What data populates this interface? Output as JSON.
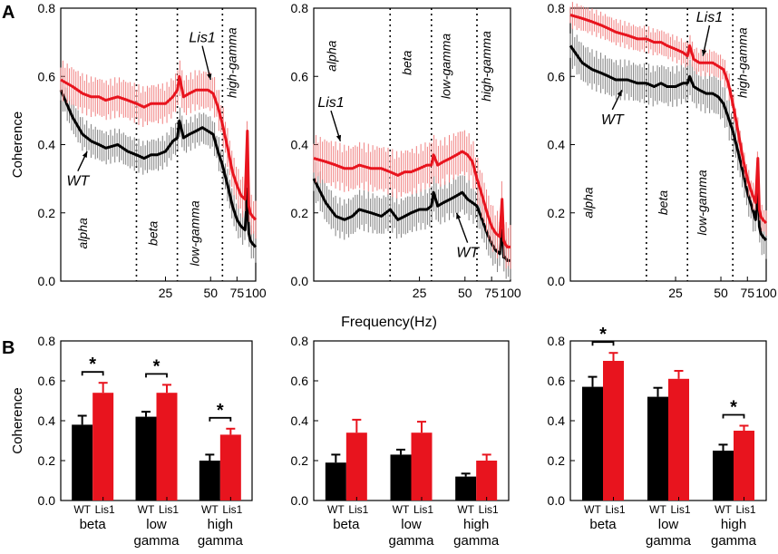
{
  "panel_labels": {
    "A": "A",
    "B": "B"
  },
  "shared_xlabel": "Frequency(Hz)",
  "colors": {
    "wt": "#000000",
    "lis1": "#e8141e",
    "wt_band": "#808080",
    "lis1_band": "#f08080"
  },
  "chart_data": [
    {
      "type": "line",
      "ylabel": "Coherence",
      "ylim": [
        0.0,
        0.8
      ],
      "yticks": [
        "0.0",
        "0.2",
        "0.4",
        "0.6",
        "0.8"
      ],
      "xscale": "log",
      "xlim": [
        5,
        100
      ],
      "xticks": [
        "25",
        "50",
        "75",
        "100"
      ],
      "xtick_values": [
        25,
        50,
        75,
        100
      ],
      "band_boundaries_hz": [
        16,
        30,
        60
      ],
      "band_labels": [
        {
          "text": "alpha",
          "f": 7.5,
          "y": 0.14
        },
        {
          "text": "beta",
          "f": 22,
          "y": 0.14
        },
        {
          "text": "low-gamma",
          "f": 42,
          "y": 0.14
        },
        {
          "text": "high-gamma",
          "f": 74,
          "y": 0.64
        }
      ],
      "series": [
        {
          "name": "WT",
          "x": [
            5,
            6,
            7,
            8,
            9,
            10,
            12,
            14,
            16,
            18,
            20,
            22,
            25,
            28,
            30,
            31,
            33,
            36,
            40,
            44,
            48,
            52,
            56,
            60,
            65,
            70,
            75,
            80,
            85,
            88,
            90,
            92,
            95,
            100
          ],
          "values": [
            0.56,
            0.48,
            0.43,
            0.41,
            0.4,
            0.39,
            0.4,
            0.38,
            0.37,
            0.36,
            0.37,
            0.37,
            0.38,
            0.41,
            0.42,
            0.47,
            0.42,
            0.43,
            0.44,
            0.45,
            0.44,
            0.43,
            0.38,
            0.34,
            0.28,
            0.22,
            0.18,
            0.16,
            0.15,
            0.27,
            0.14,
            0.12,
            0.11,
            0.1
          ],
          "err": 0.05
        },
        {
          "name": "Lis1",
          "x": [
            5,
            6,
            7,
            8,
            9,
            10,
            12,
            14,
            16,
            18,
            20,
            22,
            25,
            28,
            30,
            31,
            33,
            36,
            40,
            44,
            48,
            52,
            56,
            60,
            65,
            70,
            75,
            80,
            85,
            88,
            90,
            92,
            95,
            100
          ],
          "values": [
            0.59,
            0.57,
            0.55,
            0.54,
            0.54,
            0.53,
            0.54,
            0.53,
            0.52,
            0.51,
            0.52,
            0.52,
            0.52,
            0.54,
            0.56,
            0.6,
            0.54,
            0.55,
            0.56,
            0.56,
            0.56,
            0.55,
            0.51,
            0.46,
            0.39,
            0.32,
            0.28,
            0.25,
            0.24,
            0.44,
            0.22,
            0.2,
            0.19,
            0.18
          ],
          "err": 0.06
        }
      ],
      "annotations": [
        {
          "text": "Lis1",
          "f": 44,
          "y": 0.7,
          "arrow_to_f": 50,
          "arrow_to_y": 0.59
        },
        {
          "text": "WT",
          "f": 6.5,
          "y": 0.28,
          "arrow_to_f": 7.5,
          "arrow_to_y": 0.38
        }
      ]
    },
    {
      "type": "line",
      "ylim": [
        0.0,
        0.8
      ],
      "yticks": [
        "0.0",
        "0.2",
        "0.4",
        "0.6",
        "0.8"
      ],
      "xscale": "log",
      "xlim": [
        5,
        100
      ],
      "xticks": [
        "25",
        "50",
        "75",
        "100"
      ],
      "xtick_values": [
        25,
        50,
        75,
        100
      ],
      "band_boundaries_hz": [
        16,
        30,
        60
      ],
      "band_labels": [
        {
          "text": "alpha",
          "f": 7,
          "y": 0.66
        },
        {
          "text": "beta",
          "f": 22,
          "y": 0.64
        },
        {
          "text": "low-gamma",
          "f": 40,
          "y": 0.63
        },
        {
          "text": "high-gamma",
          "f": 74,
          "y": 0.63
        }
      ],
      "series": [
        {
          "name": "WT",
          "x": [
            5,
            6,
            7,
            8,
            9,
            10,
            12,
            14,
            16,
            18,
            20,
            22,
            25,
            28,
            30,
            31,
            33,
            36,
            40,
            44,
            48,
            52,
            56,
            60,
            65,
            70,
            75,
            80,
            85,
            88,
            90,
            92,
            95,
            100
          ],
          "values": [
            0.3,
            0.23,
            0.19,
            0.18,
            0.19,
            0.21,
            0.2,
            0.19,
            0.21,
            0.18,
            0.19,
            0.2,
            0.21,
            0.21,
            0.22,
            0.26,
            0.22,
            0.23,
            0.24,
            0.25,
            0.26,
            0.24,
            0.23,
            0.22,
            0.18,
            0.14,
            0.11,
            0.09,
            0.08,
            0.18,
            0.07,
            0.07,
            0.06,
            0.06
          ],
          "err": 0.06
        },
        {
          "name": "Lis1",
          "x": [
            5,
            6,
            7,
            8,
            9,
            10,
            12,
            14,
            16,
            18,
            20,
            22,
            25,
            28,
            30,
            31,
            33,
            36,
            40,
            44,
            48,
            52,
            56,
            60,
            65,
            70,
            75,
            80,
            85,
            88,
            90,
            92,
            95,
            100
          ],
          "values": [
            0.36,
            0.35,
            0.34,
            0.33,
            0.33,
            0.34,
            0.33,
            0.33,
            0.32,
            0.31,
            0.32,
            0.32,
            0.33,
            0.34,
            0.34,
            0.37,
            0.34,
            0.35,
            0.36,
            0.37,
            0.38,
            0.37,
            0.35,
            0.3,
            0.25,
            0.2,
            0.16,
            0.14,
            0.13,
            0.24,
            0.12,
            0.11,
            0.1,
            0.1
          ],
          "err": 0.07
        }
      ],
      "annotations": [
        {
          "text": "Lis1",
          "f": 6.5,
          "y": 0.51,
          "arrow_to_f": 7.5,
          "arrow_to_y": 0.41
        },
        {
          "text": "WT",
          "f": 52,
          "y": 0.07,
          "arrow_to_f": 44,
          "arrow_to_y": 0.2
        }
      ]
    },
    {
      "type": "line",
      "ylim": [
        0.0,
        0.8
      ],
      "yticks": [
        "0.0",
        "0.2",
        "0.4",
        "0.6",
        "0.8"
      ],
      "xscale": "log",
      "xlim": [
        5,
        100
      ],
      "xticks": [
        "25",
        "50",
        "75",
        "100"
      ],
      "xtick_values": [
        25,
        50,
        75,
        100
      ],
      "band_boundaries_hz": [
        16,
        30,
        60
      ],
      "band_labels": [
        {
          "text": "alpha",
          "f": 7,
          "y": 0.23
        },
        {
          "text": "beta",
          "f": 22,
          "y": 0.23
        },
        {
          "text": "low-gamma",
          "f": 40,
          "y": 0.23
        },
        {
          "text": "high-gamma",
          "f": 74,
          "y": 0.64
        }
      ],
      "series": [
        {
          "name": "WT",
          "x": [
            5,
            6,
            7,
            8,
            9,
            10,
            12,
            14,
            16,
            18,
            20,
            22,
            25,
            28,
            30,
            31,
            33,
            36,
            40,
            44,
            48,
            52,
            56,
            60,
            65,
            70,
            75,
            80,
            85,
            88,
            90,
            92,
            95,
            100
          ],
          "values": [
            0.69,
            0.64,
            0.62,
            0.61,
            0.6,
            0.59,
            0.59,
            0.58,
            0.58,
            0.57,
            0.58,
            0.57,
            0.57,
            0.58,
            0.58,
            0.6,
            0.57,
            0.56,
            0.55,
            0.55,
            0.54,
            0.52,
            0.48,
            0.44,
            0.38,
            0.32,
            0.26,
            0.22,
            0.18,
            0.3,
            0.16,
            0.14,
            0.13,
            0.12
          ],
          "err": 0.06
        },
        {
          "name": "Lis1",
          "x": [
            5,
            6,
            7,
            8,
            9,
            10,
            12,
            14,
            16,
            18,
            20,
            22,
            25,
            28,
            30,
            31,
            33,
            36,
            40,
            44,
            48,
            52,
            56,
            60,
            65,
            70,
            75,
            80,
            85,
            88,
            90,
            92,
            95,
            100
          ],
          "values": [
            0.78,
            0.77,
            0.76,
            0.75,
            0.74,
            0.73,
            0.72,
            0.71,
            0.71,
            0.7,
            0.7,
            0.69,
            0.68,
            0.67,
            0.66,
            0.69,
            0.65,
            0.64,
            0.64,
            0.64,
            0.63,
            0.62,
            0.58,
            0.52,
            0.44,
            0.36,
            0.3,
            0.26,
            0.23,
            0.36,
            0.21,
            0.19,
            0.18,
            0.17
          ],
          "err": 0.04
        }
      ],
      "annotations": [
        {
          "text": "Lis1",
          "f": 42,
          "y": 0.76,
          "arrow_to_f": 38,
          "arrow_to_y": 0.66
        },
        {
          "text": "WT",
          "f": 9.5,
          "y": 0.46,
          "arrow_to_f": 11,
          "arrow_to_y": 0.56
        }
      ]
    },
    {
      "type": "bar",
      "ylabel": "Coherence",
      "ylim": [
        0.0,
        0.8
      ],
      "yticks": [
        "0.0",
        "0.2",
        "0.4",
        "0.6",
        "0.8"
      ],
      "groups": [
        {
          "label_top": "beta",
          "label_bottom": "",
          "wt": 0.38,
          "wt_err": 0.045,
          "lis1": 0.54,
          "lis1_err": 0.05,
          "star": "*"
        },
        {
          "label_top": "low",
          "label_bottom": "gamma",
          "wt": 0.42,
          "wt_err": 0.025,
          "lis1": 0.54,
          "lis1_err": 0.04,
          "star": "*"
        },
        {
          "label_top": "high",
          "label_bottom": "gamma",
          "wt": 0.2,
          "wt_err": 0.03,
          "lis1": 0.33,
          "lis1_err": 0.03,
          "star": "*"
        }
      ],
      "bar_names": [
        "WT",
        "Lis1"
      ]
    },
    {
      "type": "bar",
      "ylim": [
        0.0,
        0.8
      ],
      "yticks": [
        "0.0",
        "0.2",
        "0.4",
        "0.6",
        "0.8"
      ],
      "groups": [
        {
          "label_top": "beta",
          "label_bottom": "",
          "wt": 0.19,
          "wt_err": 0.04,
          "lis1": 0.34,
          "lis1_err": 0.065,
          "star": ""
        },
        {
          "label_top": "low",
          "label_bottom": "gamma",
          "wt": 0.23,
          "wt_err": 0.025,
          "lis1": 0.34,
          "lis1_err": 0.055,
          "star": ""
        },
        {
          "label_top": "high",
          "label_bottom": "gamma",
          "wt": 0.12,
          "wt_err": 0.015,
          "lis1": 0.2,
          "lis1_err": 0.03,
          "star": ""
        }
      ],
      "bar_names": [
        "WT",
        "Lis1"
      ]
    },
    {
      "type": "bar",
      "ylim": [
        0.0,
        0.8
      ],
      "yticks": [
        "0.0",
        "0.2",
        "0.4",
        "0.6",
        "0.8"
      ],
      "groups": [
        {
          "label_top": "beta",
          "label_bottom": "",
          "wt": 0.57,
          "wt_err": 0.05,
          "lis1": 0.7,
          "lis1_err": 0.04,
          "star": "*"
        },
        {
          "label_top": "low",
          "label_bottom": "gamma",
          "wt": 0.52,
          "wt_err": 0.045,
          "lis1": 0.61,
          "lis1_err": 0.04,
          "star": ""
        },
        {
          "label_top": "high",
          "label_bottom": "gamma",
          "wt": 0.25,
          "wt_err": 0.03,
          "lis1": 0.35,
          "lis1_err": 0.025,
          "star": "*"
        }
      ],
      "bar_names": [
        "WT",
        "Lis1"
      ]
    }
  ]
}
